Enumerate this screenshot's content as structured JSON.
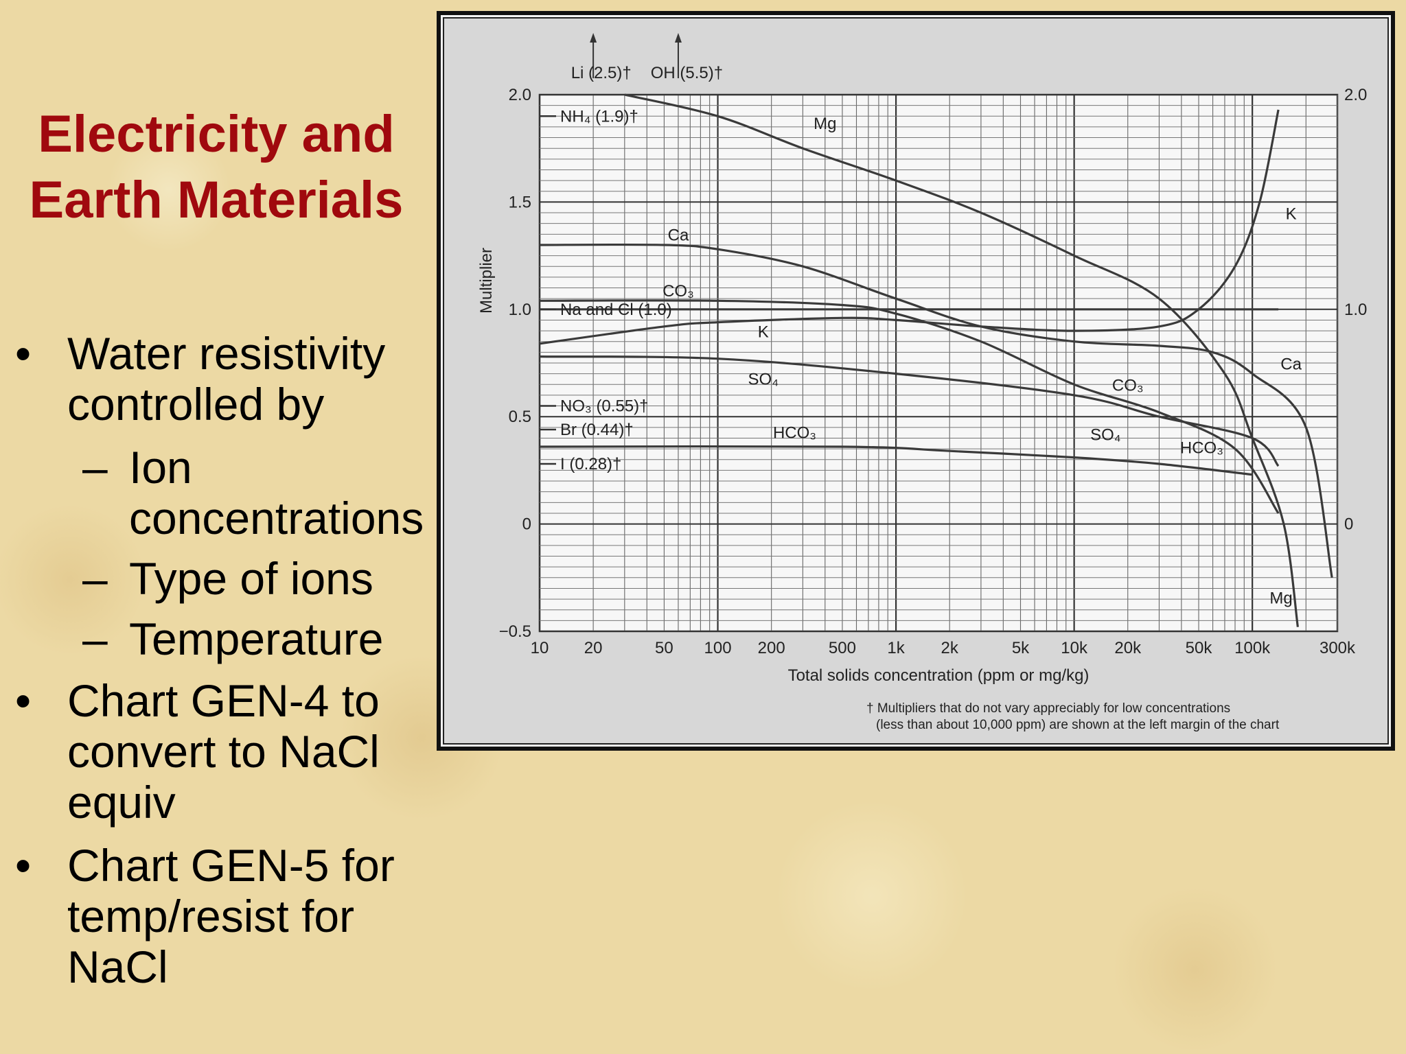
{
  "slide": {
    "title_line1": "Electricity and",
    "title_line2": "Earth Materials",
    "bullets": [
      {
        "level": 1,
        "lines": [
          "Water resistivity",
          "controlled by"
        ]
      },
      {
        "level": 2,
        "lines": [
          "Ion",
          "concentrations"
        ]
      },
      {
        "level": 2,
        "lines": [
          "Type of ions"
        ]
      },
      {
        "level": 2,
        "lines": [
          "Temperature"
        ]
      },
      {
        "level": 1,
        "lines": [
          "Chart GEN-4 to",
          "convert to NaCl",
          "equiv"
        ]
      },
      {
        "level": 1,
        "lines": [
          "Chart GEN-5 for",
          "temp/resist for",
          "NaCl"
        ]
      }
    ],
    "bullet_marker": "•",
    "dash_marker": "–"
  },
  "chart_data": {
    "type": "line",
    "xlabel": "Total solids concentration (ppm or mg/kg)",
    "ylabel": "Multiplier",
    "x_scale": "log",
    "xlim": [
      10,
      300000
    ],
    "ylim": [
      -0.5,
      2.0
    ],
    "x_ticks": [
      10,
      20,
      50,
      100,
      200,
      500,
      1000,
      2000,
      5000,
      10000,
      20000,
      50000,
      100000,
      300000
    ],
    "x_tick_labels": [
      "10",
      "20",
      "50",
      "100",
      "200",
      "500",
      "1k",
      "2k",
      "5k",
      "10k",
      "20k",
      "50k",
      "100k",
      "300k"
    ],
    "y_ticks": [
      -0.5,
      0,
      0.5,
      1.0,
      1.5,
      2.0
    ],
    "y_tick_labels": [
      "−0.5",
      "0",
      "0.5",
      "1.0",
      "1.5",
      "2.0"
    ],
    "y_ticks_right": [
      0,
      1.0,
      2.0
    ],
    "y_tick_labels_right": [
      "0",
      "1.0",
      "2.0"
    ],
    "grid": true,
    "series": [
      {
        "name": "Mg",
        "points": [
          [
            30,
            2.0
          ],
          [
            100,
            1.9
          ],
          [
            300,
            1.75
          ],
          [
            1000,
            1.6
          ],
          [
            3000,
            1.45
          ],
          [
            10000,
            1.25
          ],
          [
            30000,
            1.05
          ],
          [
            70000,
            0.7
          ],
          [
            100000,
            0.4
          ],
          [
            150000,
            0.0
          ],
          [
            180000,
            -0.48
          ]
        ]
      },
      {
        "name": "Ca",
        "points": [
          [
            10,
            1.3
          ],
          [
            50,
            1.3
          ],
          [
            100,
            1.28
          ],
          [
            300,
            1.2
          ],
          [
            1000,
            1.05
          ],
          [
            3000,
            0.92
          ],
          [
            10000,
            0.85
          ],
          [
            30000,
            0.83
          ],
          [
            60000,
            0.8
          ],
          [
            100000,
            0.7
          ],
          [
            200000,
            0.45
          ],
          [
            280000,
            -0.25
          ]
        ]
      },
      {
        "name": "K",
        "points": [
          [
            10,
            0.84
          ],
          [
            50,
            0.92
          ],
          [
            100,
            0.94
          ],
          [
            500,
            0.96
          ],
          [
            1000,
            0.95
          ],
          [
            3000,
            0.92
          ],
          [
            10000,
            0.9
          ],
          [
            30000,
            0.92
          ],
          [
            50000,
            1.0
          ],
          [
            80000,
            1.2
          ],
          [
            110000,
            1.5
          ],
          [
            140000,
            1.93
          ]
        ]
      },
      {
        "name": "CO₃",
        "points": [
          [
            10,
            1.04
          ],
          [
            100,
            1.04
          ],
          [
            500,
            1.02
          ],
          [
            1000,
            0.98
          ],
          [
            3000,
            0.85
          ],
          [
            10000,
            0.65
          ],
          [
            30000,
            0.52
          ],
          [
            80000,
            0.35
          ],
          [
            140000,
            0.05
          ]
        ]
      },
      {
        "name": "Na and Cl (1.0)",
        "points": [
          [
            10,
            1.0
          ],
          [
            140000,
            1.0
          ]
        ]
      },
      {
        "name": "SO₄",
        "points": [
          [
            10,
            0.78
          ],
          [
            100,
            0.77
          ],
          [
            1000,
            0.7
          ],
          [
            10000,
            0.6
          ],
          [
            30000,
            0.5
          ],
          [
            100000,
            0.4
          ],
          [
            140000,
            0.27
          ]
        ]
      },
      {
        "name": "HCO₃",
        "points": [
          [
            10,
            0.36
          ],
          [
            500,
            0.36
          ],
          [
            2000,
            0.34
          ],
          [
            10000,
            0.31
          ],
          [
            30000,
            0.28
          ],
          [
            100000,
            0.23
          ]
        ]
      }
    ],
    "annotations": [
      {
        "text": "Li (2.5)†",
        "value": 2.5
      },
      {
        "text": "OH (5.5)†",
        "value": 5.5
      },
      {
        "text": "NH₄ (1.9)†",
        "value": 1.9
      },
      {
        "text": "NO₃ (0.55)†",
        "value": 0.55
      },
      {
        "text": "Br (0.44)†",
        "value": 0.44
      },
      {
        "text": "I (0.28)†",
        "value": 0.28
      }
    ],
    "curve_labels": [
      "Mg",
      "Ca",
      "CO₃",
      "K",
      "SO₄",
      "HCO₃",
      "CO₃",
      "SO₄",
      "HCO₃",
      "K",
      "Ca",
      "Mg"
    ],
    "footnote_line1": "† Multipliers that do not vary appreciably for low concentrations",
    "footnote_line2": "(less than about 10,000 ppm) are shown at the left margin of the chart"
  }
}
